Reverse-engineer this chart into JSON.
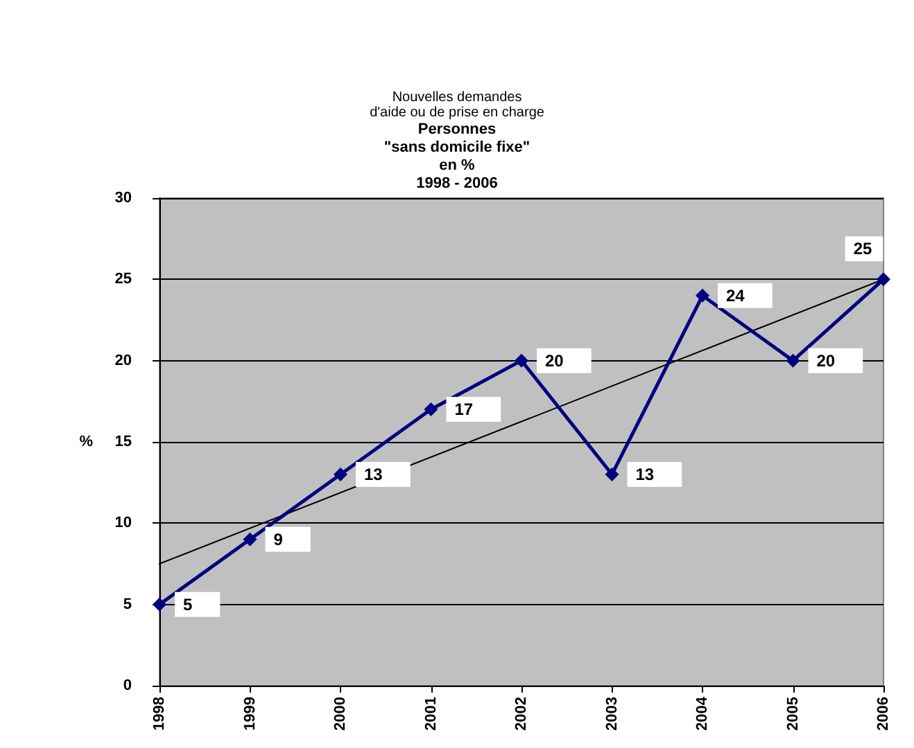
{
  "chart_data": {
    "type": "line",
    "title": "Nouvelles demandes\nd'aide ou de prise en charge",
    "subtitle": "Personnes\n\"sans domicile fixe\"\nen %\n1998 - 2006",
    "ylabel": "%",
    "categories": [
      "1998",
      "1999",
      "2000",
      "2001",
      "2002",
      "2003",
      "2004",
      "2005",
      "2006"
    ],
    "series": [
      {
        "color": "#000080",
        "values": [
          5,
          9,
          13,
          17,
          20,
          13,
          24,
          20,
          25
        ],
        "marker": "diamond",
        "data_labels": true
      },
      {
        "type": "line",
        "color": "#000000",
        "values": [
          7.5,
          null,
          null,
          null,
          null,
          null,
          null,
          null,
          25
        ],
        "marker": "none"
      }
    ],
    "ylim": [
      0,
      30
    ],
    "yticks": [
      0,
      5,
      10,
      15,
      20,
      25,
      30
    ],
    "grid": "y",
    "line_style": "solid"
  }
}
